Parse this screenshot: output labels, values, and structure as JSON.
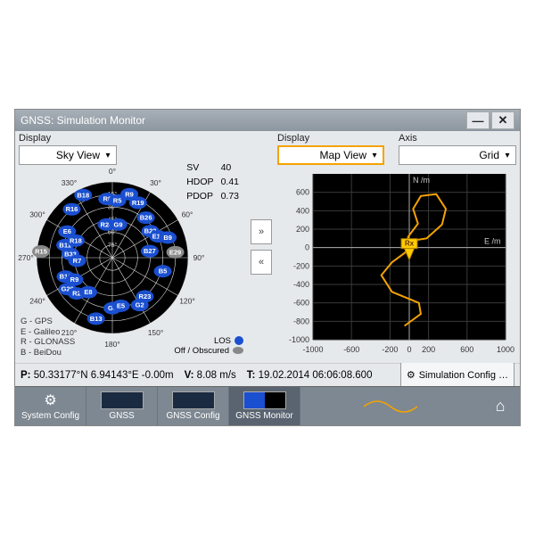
{
  "window": {
    "title": "GNSS: Simulation Monitor"
  },
  "left": {
    "display_label": "Display",
    "display_value": "Sky View",
    "stats": {
      "sv_label": "SV",
      "sv": "40",
      "hdop_label": "HDOP",
      "hdop": "0.41",
      "pdop_label": "PDOP",
      "pdop": "0.73"
    },
    "legend": {
      "g": "G - GPS",
      "e": "E - Galileo",
      "r": "R - GLONASS",
      "b": "B - BeiDou"
    },
    "los": {
      "los_label": "LOS",
      "off_label": "Off / Obscured"
    },
    "polar": {
      "bg": "#000000",
      "sat_color": "#1a4fd0",
      "grey_color": "#888888",
      "rings": [
        0,
        15,
        30,
        45,
        60,
        75
      ],
      "azimuths": [
        0,
        30,
        60,
        90,
        120,
        150,
        180,
        210,
        240,
        270,
        300,
        330
      ],
      "sats": [
        {
          "id": "R15",
          "az": 275,
          "el": 5,
          "grey": true
        },
        {
          "id": "E29",
          "az": 85,
          "el": 15,
          "grey": true
        },
        {
          "id": "B18",
          "az": 335,
          "el": 8
        },
        {
          "id": "R16",
          "az": 320,
          "el": 15
        },
        {
          "id": "E6",
          "az": 300,
          "el": 28
        },
        {
          "id": "B11",
          "az": 285,
          "el": 32
        },
        {
          "id": "R18",
          "az": 295,
          "el": 42
        },
        {
          "id": "B33",
          "az": 275,
          "el": 40
        },
        {
          "id": "R7",
          "az": 265,
          "el": 48
        },
        {
          "id": "B12",
          "az": 248,
          "el": 30
        },
        {
          "id": "R9",
          "az": 240,
          "el": 38
        },
        {
          "id": "G20",
          "az": 235,
          "el": 25
        },
        {
          "id": "R2",
          "az": 225,
          "el": 30
        },
        {
          "id": "E8",
          "az": 215,
          "el": 40
        },
        {
          "id": "B13",
          "az": 195,
          "el": 15
        },
        {
          "id": "G3",
          "az": 180,
          "el": 30
        },
        {
          "id": "E5",
          "az": 170,
          "el": 32
        },
        {
          "id": "R24",
          "az": 350,
          "el": 50
        },
        {
          "id": "G9",
          "az": 10,
          "el": 50
        },
        {
          "id": "R19",
          "az": 25,
          "el": 18
        },
        {
          "id": "R9",
          "az": 15,
          "el": 12
        },
        {
          "id": "B26",
          "az": 40,
          "el": 28
        },
        {
          "id": "B22",
          "az": 55,
          "el": 35
        },
        {
          "id": "E14",
          "az": 65,
          "el": 30
        },
        {
          "id": "B9",
          "az": 70,
          "el": 20
        },
        {
          "id": "R23",
          "az": 140,
          "el": 30
        },
        {
          "id": "G2",
          "az": 150,
          "el": 25
        },
        {
          "id": "B27",
          "az": 80,
          "el": 45
        },
        {
          "id": "B5",
          "az": 105,
          "el": 28
        },
        {
          "id": "R8",
          "az": 355,
          "el": 20
        },
        {
          "id": "R5",
          "az": 5,
          "el": 22
        }
      ]
    }
  },
  "mid": {
    "next": "»",
    "prev": "«"
  },
  "right": {
    "display_label": "Display",
    "display_value": "Map View",
    "axis_label": "Axis",
    "axis_value": "Grid",
    "map": {
      "bg": "#000000",
      "xlim": [
        -1000,
        1000
      ],
      "ylim": [
        -1000,
        800
      ],
      "xticks": [
        -1000,
        -600,
        -200,
        0,
        200,
        600,
        1000
      ],
      "yticks": [
        -1000,
        -800,
        -600,
        -400,
        -200,
        0,
        200,
        400,
        600
      ],
      "xlabel": "E /m",
      "ylabel": "N /m",
      "track_color": "#f5a300",
      "marker_label": "Rx",
      "track": [
        [
          -50,
          -850
        ],
        [
          120,
          -720
        ],
        [
          100,
          -600
        ],
        [
          -180,
          -480
        ],
        [
          -290,
          -300
        ],
        [
          -180,
          -160
        ],
        [
          -50,
          -60
        ],
        [
          0,
          0
        ],
        [
          60,
          80
        ],
        [
          180,
          100
        ],
        [
          340,
          250
        ],
        [
          380,
          420
        ],
        [
          280,
          580
        ],
        [
          120,
          560
        ],
        [
          40,
          420
        ],
        [
          90,
          260
        ],
        [
          -10,
          120
        ],
        [
          -30,
          40
        ],
        [
          0,
          0
        ]
      ]
    }
  },
  "status": {
    "p_label": "P:",
    "p_value": "50.33177°N 6.94143°E -0.00m",
    "v_label": "V:",
    "v_value": "8.08 m/s",
    "t_label": "T:",
    "t_value": "19.02.2014 06:06:08.600",
    "simcfg": "Simulation Config …"
  },
  "taskbar": {
    "items": [
      "System Config",
      "GNSS",
      "GNSS Config",
      "GNSS Monitor"
    ]
  }
}
